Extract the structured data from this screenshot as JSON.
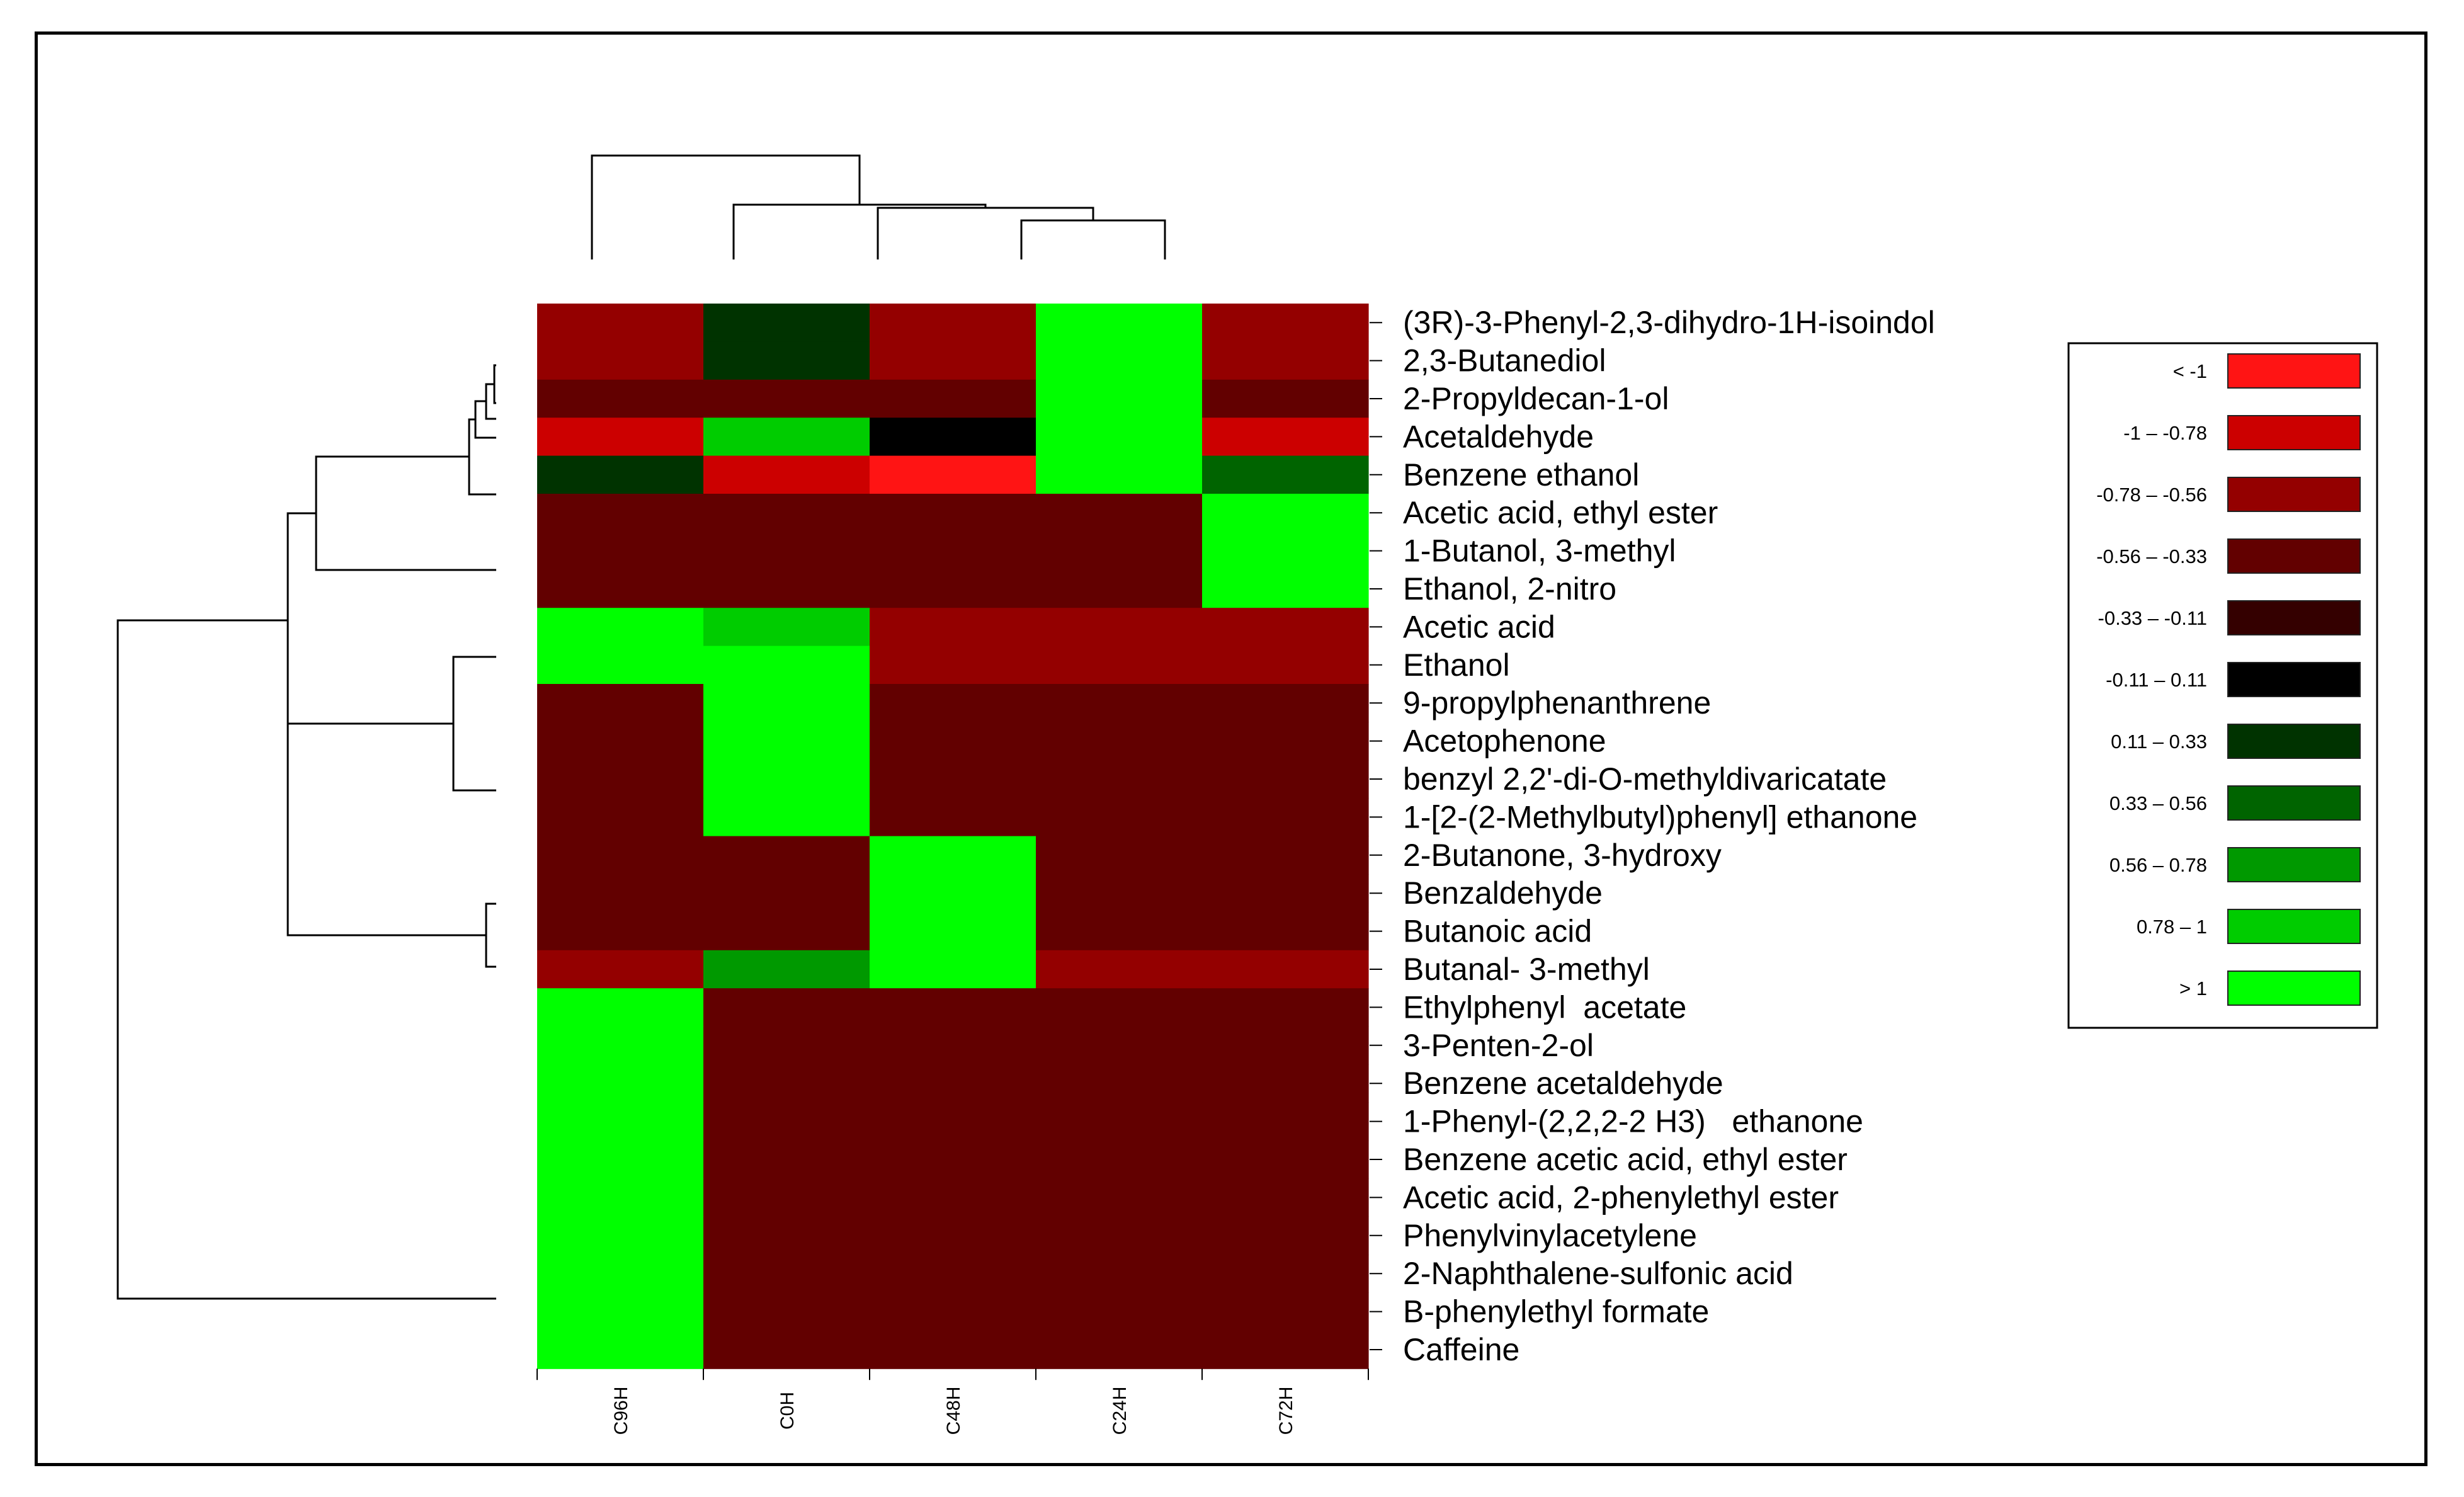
{
  "chart_data": {
    "type": "heatmap",
    "columns": [
      "C96H",
      "C0H",
      "C48H",
      "C24H",
      "C72H"
    ],
    "rows": [
      "(3R)-3-Phenyl-2,3-dihydro-1H-isoindol",
      "2,3-Butanediol",
      "2-Propyldecan-1-ol",
      "Acetaldehyde",
      "Benzene ethanol",
      "Acetic acid, ethyl ester",
      "1-Butanol, 3-methyl",
      "Ethanol, 2-nitro",
      "Acetic acid",
      "Ethanol",
      "9-propylphenanthrene",
      "Acetophenone",
      "benzyl 2,2'-di-O-methyldivaricatate",
      "1-[2-(2-Methylbutyl)phenyl] ethanone",
      "2-Butanone, 3-hydroxy",
      "Benzaldehyde",
      "Butanoic acid",
      "Butanal- 3-methyl",
      "Ethylphenyl  acetate",
      "3-Penten-2-ol",
      "Benzene acetaldehyde",
      "1-Phenyl-(2,2,2-2 H3)   ethanone",
      "Benzene acetic acid, ethyl ester",
      "Acetic acid, 2-phenylethyl ester",
      "Phenylvinylacetylene",
      "2-Naphthalene-sulfonic acid",
      "B-phenylethyl formate",
      "Caffeine"
    ],
    "values": [
      [
        -0.67,
        0.22,
        -0.67,
        1.1,
        -0.67
      ],
      [
        -0.67,
        0.22,
        -0.67,
        1.1,
        -0.67
      ],
      [
        -0.44,
        -0.44,
        -0.44,
        1.1,
        -0.44
      ],
      [
        -0.89,
        0.89,
        0.0,
        1.1,
        -0.89
      ],
      [
        0.22,
        -0.89,
        -1.1,
        1.1,
        0.44
      ],
      [
        -0.44,
        -0.44,
        -0.44,
        -0.44,
        1.1
      ],
      [
        -0.44,
        -0.44,
        -0.44,
        -0.44,
        1.1
      ],
      [
        -0.44,
        -0.44,
        -0.44,
        -0.44,
        1.1
      ],
      [
        1.1,
        0.89,
        -0.67,
        -0.67,
        -0.67
      ],
      [
        1.1,
        1.1,
        -0.67,
        -0.67,
        -0.67
      ],
      [
        -0.44,
        1.1,
        -0.44,
        -0.44,
        -0.44
      ],
      [
        -0.44,
        1.1,
        -0.44,
        -0.44,
        -0.44
      ],
      [
        -0.44,
        1.1,
        -0.44,
        -0.44,
        -0.44
      ],
      [
        -0.44,
        1.1,
        -0.44,
        -0.44,
        -0.44
      ],
      [
        -0.44,
        -0.44,
        1.1,
        -0.44,
        -0.44
      ],
      [
        -0.44,
        -0.44,
        1.1,
        -0.44,
        -0.44
      ],
      [
        -0.44,
        -0.44,
        1.1,
        -0.44,
        -0.44
      ],
      [
        -0.67,
        0.67,
        1.1,
        -0.67,
        -0.67
      ],
      [
        1.1,
        -0.44,
        -0.44,
        -0.44,
        -0.44
      ],
      [
        1.1,
        -0.44,
        -0.44,
        -0.44,
        -0.44
      ],
      [
        1.1,
        -0.44,
        -0.44,
        -0.44,
        -0.44
      ],
      [
        1.1,
        -0.44,
        -0.44,
        -0.44,
        -0.44
      ],
      [
        1.1,
        -0.44,
        -0.44,
        -0.44,
        -0.44
      ],
      [
        1.1,
        -0.44,
        -0.44,
        -0.44,
        -0.44
      ],
      [
        1.1,
        -0.44,
        -0.44,
        -0.44,
        -0.44
      ],
      [
        1.1,
        -0.44,
        -0.44,
        -0.44,
        -0.44
      ],
      [
        1.1,
        -0.44,
        -0.44,
        -0.44,
        -0.44
      ],
      [
        1.1,
        -0.44,
        -0.44,
        -0.44,
        -0.44
      ]
    ],
    "legend": {
      "placement": "right",
      "bins": [
        {
          "label": "< -1",
          "color": "#ff1414"
        },
        {
          "label": "-1 – -0.78",
          "color": "#cc0000"
        },
        {
          "label": "-0.78 – -0.56",
          "color": "#940000"
        },
        {
          "label": "-0.56 – -0.33",
          "color": "#620000"
        },
        {
          "label": "-0.33 – -0.11",
          "color": "#340000"
        },
        {
          "label": "-0.11 – 0.11",
          "color": "#000000"
        },
        {
          "label": "0.11 – 0.33",
          "color": "#003300"
        },
        {
          "label": "0.33 – 0.56",
          "color": "#006400"
        },
        {
          "label": "0.56 – 0.78",
          "color": "#009900"
        },
        {
          "label": "0.78 – 1",
          "color": "#00cc00"
        },
        {
          "label": "> 1",
          "color": "#00ff00"
        }
      ]
    },
    "column_dendrogram": true,
    "row_dendrogram": true
  }
}
